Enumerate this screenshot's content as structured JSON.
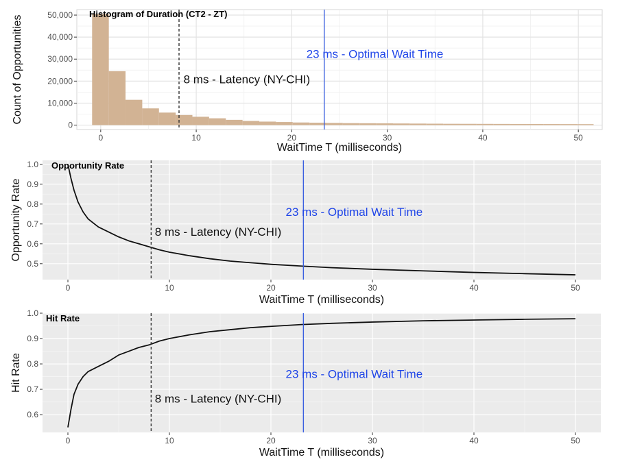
{
  "chart_data": [
    {
      "type": "bar",
      "title": "Histogram of Duration (CT2 - ZT)",
      "xlabel": "WaitTime T (milliseconds)",
      "ylabel": "Count of Opportunities",
      "xlim": [
        -2.5,
        52.5
      ],
      "ylim": [
        -2000,
        52500
      ],
      "x_ticks": [
        0,
        10,
        20,
        30,
        40,
        50
      ],
      "y_ticks": [
        0,
        10000,
        20000,
        30000,
        40000,
        50000
      ],
      "y_tick_labels": [
        "0",
        "10,000",
        "20,000",
        "30,000",
        "40,000",
        "50,000"
      ],
      "bin_width": 1.75,
      "bin_starts": [
        -0.9,
        0.85,
        2.6,
        4.35,
        6.1,
        7.85,
        9.6,
        11.35,
        13.1,
        14.85,
        16.6,
        18.35,
        20.1,
        21.85,
        23.6,
        25.35,
        27.1,
        28.85,
        30.6,
        32.35,
        34.1,
        35.85,
        37.6,
        39.35,
        41.1,
        42.85,
        44.6,
        46.35,
        48.1,
        49.85
      ],
      "values": [
        50500,
        24500,
        11500,
        7600,
        5700,
        4600,
        3800,
        3100,
        2400,
        1900,
        1600,
        1400,
        1200,
        1100,
        1000,
        900,
        850,
        800,
        750,
        700,
        650,
        600,
        580,
        560,
        540,
        520,
        500,
        480,
        460,
        440
      ],
      "bar_color": "#d2b394",
      "background": "white",
      "grid": true,
      "annotations": [
        {
          "x": 8.2,
          "style": "dashed",
          "color": "#333333",
          "label": "8 ms - Latency (NY-CHI)",
          "label_x": 15.3,
          "label_y": 19000,
          "label_color": "#111111"
        },
        {
          "x": 23.4,
          "style": "solid",
          "color": "#3a5fe0",
          "label": "23 ms - Optimal Wait Time",
          "label_x": 28.7,
          "label_y": 30500,
          "label_color": "#1f45e8"
        }
      ]
    },
    {
      "type": "line",
      "title": "Opportunity Rate",
      "xlabel": "WaitTime T (milliseconds)",
      "ylabel": "Opportunity Rate",
      "xlim": [
        -2.5,
        52.5
      ],
      "ylim": [
        0.42,
        1.02
      ],
      "x_ticks": [
        0,
        10,
        20,
        30,
        40,
        50
      ],
      "y_ticks": [
        0.5,
        0.6,
        0.7,
        0.8,
        0.9,
        1.0
      ],
      "y_tick_labels": [
        "0.5",
        "0.6",
        "0.7",
        "0.8",
        "0.9",
        "1.0"
      ],
      "x": [
        0,
        0.3,
        0.6,
        1,
        1.5,
        2,
        3,
        4,
        5,
        6,
        7,
        8,
        9,
        10,
        12,
        14,
        16,
        18,
        20,
        23,
        26,
        30,
        35,
        40,
        45,
        50
      ],
      "y": [
        1.0,
        0.93,
        0.87,
        0.81,
        0.76,
        0.725,
        0.685,
        0.66,
        0.635,
        0.615,
        0.6,
        0.585,
        0.57,
        0.558,
        0.54,
        0.525,
        0.513,
        0.505,
        0.497,
        0.488,
        0.48,
        0.472,
        0.464,
        0.456,
        0.45,
        0.444
      ],
      "line_color": "#111111",
      "background": "#ebebeb",
      "grid": true,
      "annotations": [
        {
          "x": 8.2,
          "style": "dashed",
          "color": "#333333",
          "label": "8 ms - Latency (NY-CHI)",
          "label_x": 14.8,
          "label_y": 0.64,
          "label_color": "#111111"
        },
        {
          "x": 23.2,
          "style": "solid",
          "color": "#3a5fe0",
          "label": "23 ms - Optimal Wait Time",
          "label_x": 28.2,
          "label_y": 0.74,
          "label_color": "#1f45e8"
        }
      ]
    },
    {
      "type": "line",
      "title": "Hit Rate",
      "xlabel": "WaitTime T (milliseconds)",
      "ylabel": "Hit Rate",
      "xlim": [
        -2.5,
        52.5
      ],
      "ylim": [
        0.53,
        1.0
      ],
      "x_ticks": [
        0,
        10,
        20,
        30,
        40,
        50
      ],
      "y_ticks": [
        0.6,
        0.7,
        0.8,
        0.9,
        1.0
      ],
      "y_tick_labels": [
        "0.6",
        "0.7",
        "0.8",
        "0.9",
        "1.0"
      ],
      "x": [
        0,
        0.3,
        0.6,
        1,
        1.5,
        2,
        3,
        4,
        5,
        6,
        7,
        8,
        9,
        10,
        12,
        14,
        16,
        18,
        20,
        23,
        26,
        30,
        35,
        40,
        45,
        50
      ],
      "y": [
        0.55,
        0.62,
        0.68,
        0.72,
        0.75,
        0.77,
        0.79,
        0.81,
        0.835,
        0.85,
        0.865,
        0.875,
        0.89,
        0.9,
        0.915,
        0.927,
        0.935,
        0.943,
        0.948,
        0.955,
        0.96,
        0.965,
        0.97,
        0.973,
        0.976,
        0.978
      ],
      "line_color": "#111111",
      "background": "#ebebeb",
      "grid": true,
      "annotations": [
        {
          "x": 8.2,
          "style": "dashed",
          "color": "#333333",
          "label": "8 ms - Latency (NY-CHI)",
          "label_x": 14.8,
          "label_y": 0.648,
          "label_color": "#111111"
        },
        {
          "x": 23.2,
          "style": "solid",
          "color": "#3a5fe0",
          "label": "23 ms - Optimal Wait Time",
          "label_x": 28.2,
          "label_y": 0.745,
          "label_color": "#1f45e8"
        }
      ]
    }
  ]
}
